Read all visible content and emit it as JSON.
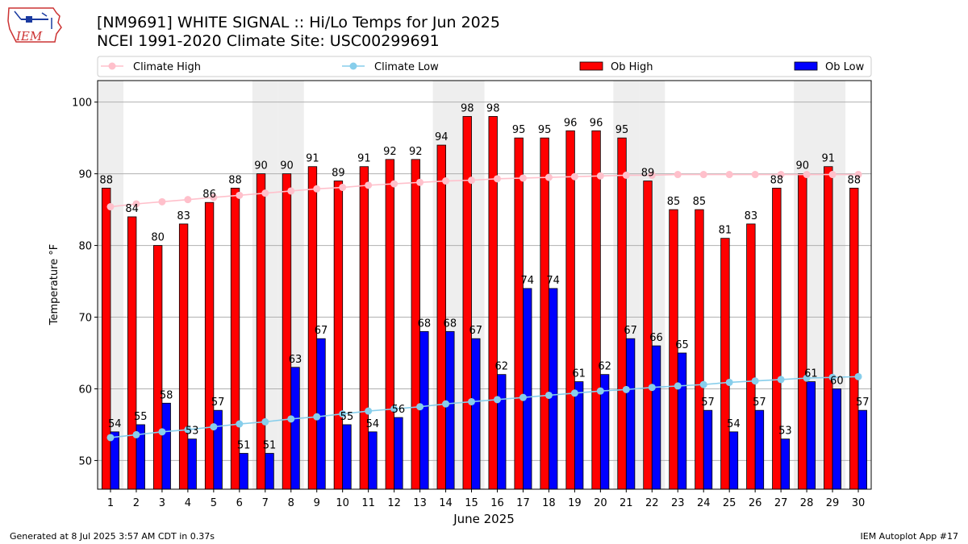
{
  "header": {
    "logo_text": "IEM",
    "title_line1": "[NM9691] WHITE SIGNAL :: Hi/Lo Temps for Jun 2025",
    "title_line2": "NCEI 1991-2020 Climate Site: USC00299691"
  },
  "footer": {
    "generated": "Generated at 8 Jul 2025 3:57 AM CDT in 0.37s",
    "app": "IEM Autoplot App #17"
  },
  "colors": {
    "climate_high": "#ffc0cb",
    "climate_low": "#87ceeb",
    "ob_high": "#ff0000",
    "ob_low": "#0000ff",
    "weekend_shade": "#eeeeee",
    "grid": "#b0b0b0"
  },
  "chart_data": {
    "type": "bar",
    "xlabel": "June 2025",
    "ylabel": "Temperature °F",
    "ylim": [
      46,
      103
    ],
    "yticks": [
      50,
      60,
      70,
      80,
      90,
      100
    ],
    "grid": "horizontal",
    "legend_position": "top",
    "categories": [
      "1",
      "2",
      "3",
      "4",
      "5",
      "6",
      "7",
      "8",
      "9",
      "10",
      "11",
      "12",
      "13",
      "14",
      "15",
      "16",
      "17",
      "18",
      "19",
      "20",
      "21",
      "22",
      "23",
      "24",
      "25",
      "26",
      "27",
      "28",
      "29",
      "30"
    ],
    "shaded_days": [
      1,
      7,
      8,
      14,
      15,
      21,
      22,
      28,
      29
    ],
    "series": [
      {
        "name": "Climate High",
        "kind": "line",
        "values": [
          85.4,
          85.8,
          86.1,
          86.4,
          86.7,
          87.0,
          87.3,
          87.6,
          87.9,
          88.1,
          88.4,
          88.6,
          88.8,
          89.0,
          89.1,
          89.3,
          89.4,
          89.5,
          89.6,
          89.7,
          89.8,
          89.8,
          89.9,
          89.9,
          89.9,
          89.9,
          89.9,
          89.9,
          89.9,
          89.9
        ]
      },
      {
        "name": "Climate Low",
        "kind": "line",
        "values": [
          53.2,
          53.6,
          54.0,
          54.3,
          54.7,
          55.1,
          55.4,
          55.8,
          56.1,
          56.5,
          56.9,
          57.2,
          57.5,
          57.9,
          58.2,
          58.5,
          58.8,
          59.1,
          59.4,
          59.7,
          59.9,
          60.2,
          60.4,
          60.6,
          60.9,
          61.1,
          61.3,
          61.5,
          61.6,
          61.7
        ]
      },
      {
        "name": "Ob High",
        "kind": "bar",
        "values": [
          88,
          84,
          80,
          83,
          86,
          88,
          90,
          90,
          91,
          89,
          91,
          92,
          92,
          94,
          98,
          98,
          95,
          95,
          96,
          96,
          95,
          89,
          85,
          85,
          81,
          83,
          88,
          90,
          91,
          88
        ]
      },
      {
        "name": "Ob Low",
        "kind": "bar",
        "values": [
          54,
          55,
          58,
          53,
          57,
          51,
          51,
          63,
          67,
          55,
          54,
          56,
          68,
          68,
          67,
          62,
          74,
          74,
          61,
          62,
          67,
          66,
          65,
          57,
          54,
          57,
          53,
          61,
          60,
          57
        ]
      }
    ]
  }
}
